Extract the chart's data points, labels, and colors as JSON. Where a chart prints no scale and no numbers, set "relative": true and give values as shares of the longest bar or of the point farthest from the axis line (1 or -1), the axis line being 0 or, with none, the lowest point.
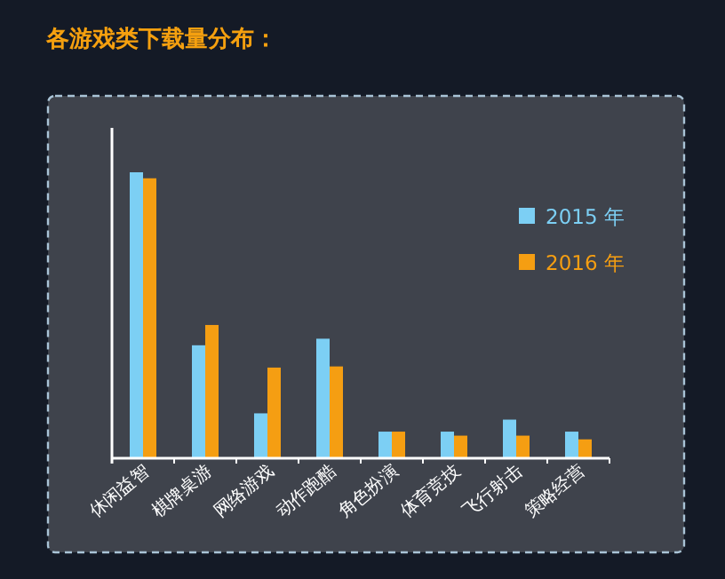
{
  "chart_data": {
    "type": "bar",
    "title": "各游戏类下载量分布：",
    "relative": true,
    "categories": [
      "休闲益智",
      "棋牌桌游",
      "网络游戏",
      "动作跑酷",
      "角色扮演",
      "体育竞技",
      "飞行射击",
      "策略经营"
    ],
    "series": [
      {
        "name": "2015 年",
        "color": "#7ccff4",
        "values": [
          1,
          0.395,
          0.157,
          0.418,
          0.093,
          0.093,
          0.135,
          0.093
        ]
      },
      {
        "name": "2016 年",
        "color": "#f59e12",
        "values": [
          0.979,
          0.466,
          0.317,
          0.321,
          0.093,
          0.079,
          0.079,
          0.066
        ]
      }
    ],
    "legend": "top right"
  }
}
